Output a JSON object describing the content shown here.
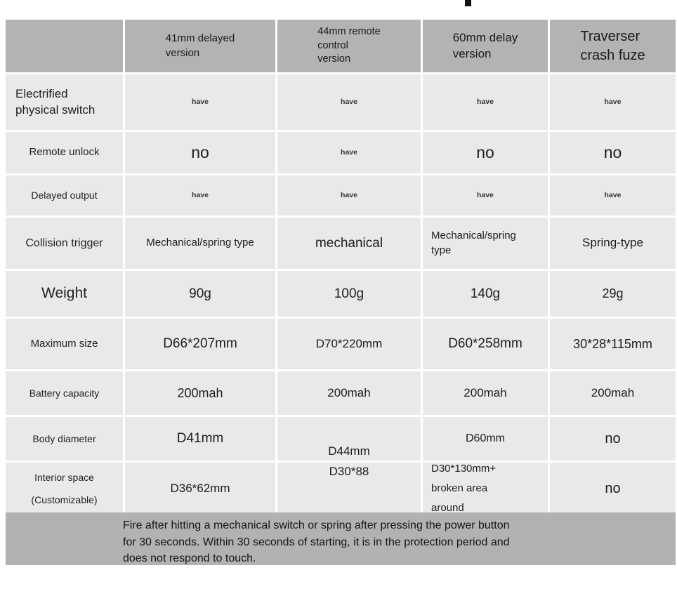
{
  "table": {
    "columns": [
      "",
      "41mm delayed\nversion",
      "44mm remote\ncontrol\nversion",
      "60mm delay\nversion",
      "Traverser\ncrash fuze"
    ],
    "rows": [
      {
        "label": "Electrified\nphysical switch",
        "values": [
          "have",
          "have",
          "have",
          "have"
        ]
      },
      {
        "label": "Remote unlock",
        "values": [
          "no",
          "have",
          "no",
          "no"
        ]
      },
      {
        "label": "Delayed output",
        "values": [
          "have",
          "have",
          "have",
          "have"
        ]
      },
      {
        "label": "Collision trigger",
        "values": [
          "Mechanical/spring type",
          "mechanical",
          "Mechanical/spring\ntype",
          "Spring-type"
        ]
      },
      {
        "label": "Weight",
        "values": [
          "90g",
          "100g",
          "140g",
          "29g"
        ]
      },
      {
        "label": "Maximum size",
        "values": [
          "D66*207mm",
          "D70*220mm",
          "D60*258mm",
          "30*28*115mm"
        ]
      },
      {
        "label": "Battery capacity",
        "values": [
          "200mah",
          "200mah",
          "200mah",
          "200mah"
        ]
      },
      {
        "label": "Body diameter",
        "values": [
          "D41mm",
          "D44mm",
          "D60mm",
          "no"
        ]
      },
      {
        "label": "Interior space\n(Customizable)",
        "values": [
          "D36*62mm",
          "D30*88",
          "D30*130mm+\nbroken area\naround",
          "no"
        ]
      }
    ]
  },
  "footer": {
    "note": "Fire after hitting a mechanical switch or spring after pressing the power button\nfor 30 seconds. Within 30 seconds of starting, it is in the protection period and\ndoes not respond to touch."
  },
  "colors": {
    "header_gray": "#b3b3b3",
    "cell_gray": "#e9e9e8",
    "footer_gray": "#b2b2b2",
    "text": "#1d1d1d"
  }
}
